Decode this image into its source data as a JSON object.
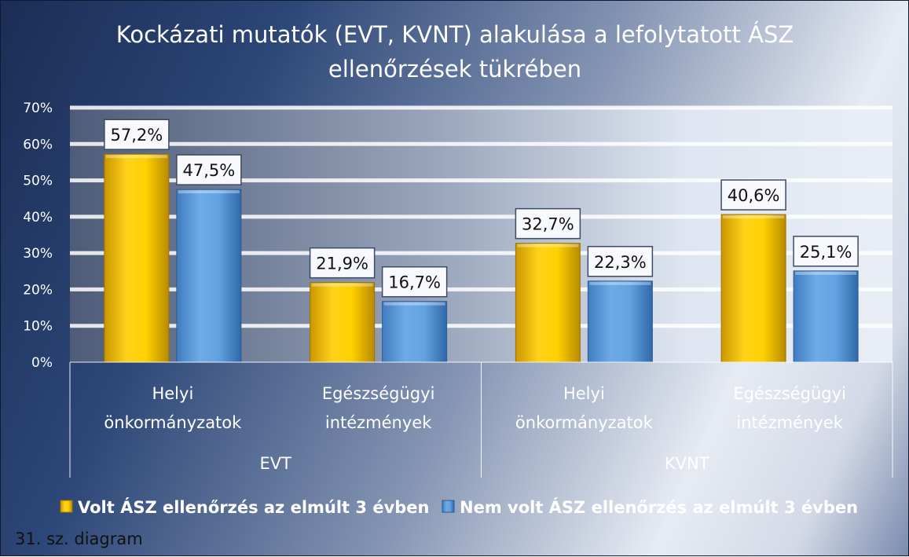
{
  "chart_data": {
    "type": "bar",
    "title_lines": [
      "Kockázati mutatók (EVT, KVNT) alakulása a lefolytatott ÁSZ",
      "ellenőrzések tükrében"
    ],
    "ylim": [
      0,
      70
    ],
    "y_ticks": [
      "0%",
      "10%",
      "20%",
      "30%",
      "40%",
      "50%",
      "60%",
      "70%"
    ],
    "groups": [
      {
        "name": "EVT",
        "categories": [
          [
            "Helyi",
            "önkormányzatok"
          ],
          [
            "Egészségügyi",
            "intézmények"
          ]
        ]
      },
      {
        "name": "KVNT",
        "categories": [
          [
            "Helyi",
            "önkormányzatok"
          ],
          [
            "Egészségügyi",
            "intézmények"
          ]
        ]
      }
    ],
    "series": [
      {
        "name": "Volt ÁSZ ellenőrzés az elmúlt 3 évben",
        "color": "#f2c200",
        "values": [
          57.2,
          21.9,
          32.7,
          40.6
        ],
        "labels": [
          "57,2%",
          "21,9%",
          "32,7%",
          "40,6%"
        ]
      },
      {
        "name": "Nem volt ÁSZ ellenőrzés az elmúlt 3 évben",
        "color": "#5b9bd5",
        "values": [
          47.5,
          16.7,
          22.3,
          25.1
        ],
        "labels": [
          "47,5%",
          "16,7%",
          "22,3%",
          "25,1%"
        ]
      }
    ],
    "grid": true,
    "legend_position": "bottom"
  },
  "caption": "31. sz. diagram"
}
